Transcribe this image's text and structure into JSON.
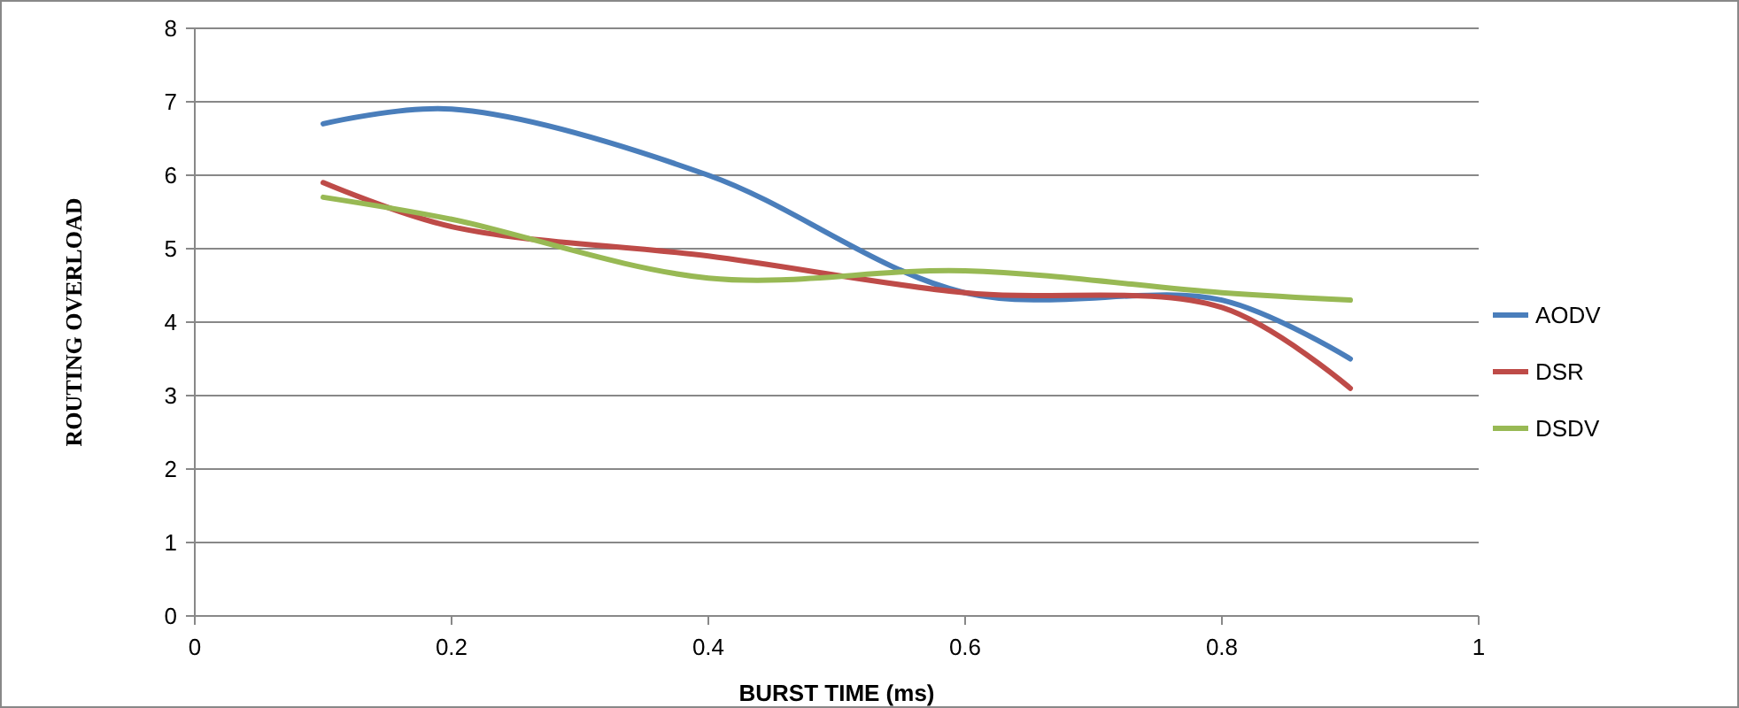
{
  "chart_data": {
    "type": "line",
    "xlabel": "BURST TIME (ms)",
    "ylabel": "ROUTING OVERLOAD",
    "x": [
      0.1,
      0.2,
      0.4,
      0.6,
      0.8,
      0.9
    ],
    "series": [
      {
        "name": "AODV",
        "color": "#4a7ebb",
        "values": [
          6.7,
          6.9,
          6.0,
          4.4,
          4.3,
          3.5
        ]
      },
      {
        "name": "DSR",
        "color": "#be4b48",
        "values": [
          5.9,
          5.3,
          4.9,
          4.4,
          4.2,
          3.1
        ]
      },
      {
        "name": "DSDV",
        "color": "#98b954",
        "values": [
          5.7,
          5.4,
          4.6,
          4.7,
          4.4,
          4.3
        ]
      }
    ],
    "xlim": [
      0,
      1
    ],
    "xticks": [
      0,
      0.2,
      0.4,
      0.6,
      0.8,
      1
    ],
    "ylim": [
      0,
      8
    ],
    "yticks": [
      0,
      1,
      2,
      3,
      4,
      5,
      6,
      7,
      8
    ],
    "grid": "y",
    "legend": "right",
    "marker": "none",
    "line_style": "solid"
  }
}
